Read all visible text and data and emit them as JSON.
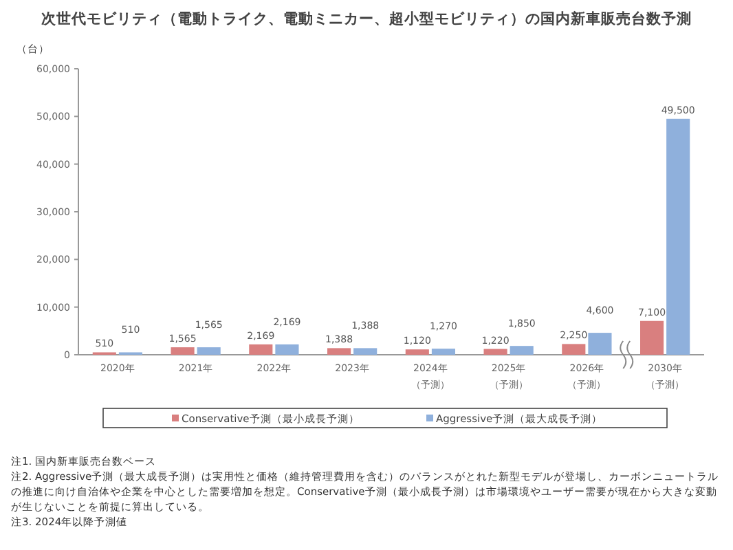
{
  "chart_data": {
    "type": "bar",
    "title": "次世代モビリティ（電動トライク、電動ミニカー、超小型モビリティ）の国内新車販売台数予測",
    "ylabel": "（台）",
    "categories": [
      "2020年",
      "2021年",
      "2022年",
      "2023年",
      "2024年（予測）",
      "2025年（予測）",
      "2026年（予測）",
      "2030年（予測）"
    ],
    "series": [
      {
        "name": "Conservative予測（最小成長予測）",
        "color": "#d97f7f",
        "values": [
          510,
          1565,
          2169,
          1388,
          1120,
          1220,
          2250,
          7100
        ],
        "value_labels": [
          "510",
          "1,565",
          "2,169",
          "1,388",
          "1,120",
          "1,220",
          "2,250",
          "7,100"
        ]
      },
      {
        "name": "Aggressive予測（最大成長予測）",
        "color": "#8fb0dc",
        "values": [
          510,
          1565,
          2169,
          1388,
          1270,
          1850,
          4600,
          49500
        ],
        "value_labels": [
          "510",
          "1,565",
          "2,169",
          "1,388",
          "1,270",
          "1,850",
          "4,600",
          "49,500"
        ]
      }
    ],
    "ylim": [
      0,
      60000
    ],
    "yticks": [
      {
        "value": 0,
        "label": "0"
      },
      {
        "value": 10000,
        "label": "10,000"
      },
      {
        "value": 20000,
        "label": "20,000"
      },
      {
        "value": 30000,
        "label": "30,000"
      },
      {
        "value": 40000,
        "label": "40,000"
      },
      {
        "value": 50000,
        "label": "50,000"
      },
      {
        "value": 60000,
        "label": "60,000"
      }
    ],
    "grid": false,
    "legend": "bottom",
    "annotations": [
      "注1. 国内新車販売台数ベース",
      "注2. Aggressive予測（最大成長予測）は実用性と価格（維持管理費用を含む）のバランスがとれた新型モデルが登場し、カーボンニュートラルの推進に向け自治体や企業を中心とした需要増加を想定。Conservative予測（最小成長予測）は市場環境やユーザー需要が現在から大きな変動が生じないことを前提に算出している。",
      "注3. 2024年以降予測値"
    ]
  }
}
